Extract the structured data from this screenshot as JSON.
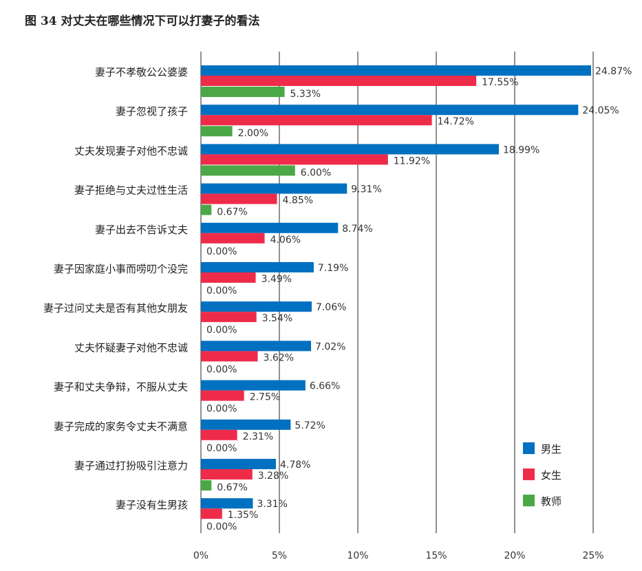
{
  "title": "图 34 对丈夫在哪些情况下可以打妻子的看法",
  "chart_data": {
    "type": "bar",
    "orientation": "horizontal",
    "title": "图 34 对丈夫在哪些情况下可以打妻子的看法",
    "categories": [
      "妻子不孝敬公公婆婆",
      "妻子忽视了孩子",
      "丈夫发现妻子对他不忠诚",
      "妻子拒绝与丈夫过性生活",
      "妻子出去不告诉丈夫",
      "妻子因家庭小事而唠叨个没完",
      "妻子过问丈夫是否有其他女朋友",
      "丈夫怀疑妻子对他不忠诚",
      "妻子和丈夫争辩，不服从丈夫",
      "妻子完成的家务令丈夫不满意",
      "妻子通过打扮吸引注意力",
      "妻子没有生男孩"
    ],
    "series": [
      {
        "name": "男生",
        "color": "#0070C0",
        "values": [
          24.87,
          24.05,
          18.99,
          9.31,
          8.74,
          7.19,
          7.06,
          7.02,
          6.66,
          5.72,
          4.78,
          3.31
        ]
      },
      {
        "name": "女生",
        "color": "#EE2C4A",
        "values": [
          17.55,
          14.72,
          11.92,
          4.85,
          4.06,
          3.49,
          3.54,
          3.62,
          2.75,
          2.31,
          3.28,
          1.35
        ]
      },
      {
        "name": "教师",
        "color": "#4BA847",
        "values": [
          5.33,
          2.0,
          6.0,
          0.67,
          0.0,
          0.0,
          0.0,
          0.0,
          0.0,
          0.0,
          0.67,
          0.0
        ]
      }
    ],
    "xlim": [
      0,
      25
    ],
    "xticks": [
      "0%",
      "5%",
      "10%",
      "15%",
      "20%",
      "25%"
    ],
    "value_format": "percent-2dp",
    "grid": "vertical",
    "legend": "bottom-right"
  }
}
